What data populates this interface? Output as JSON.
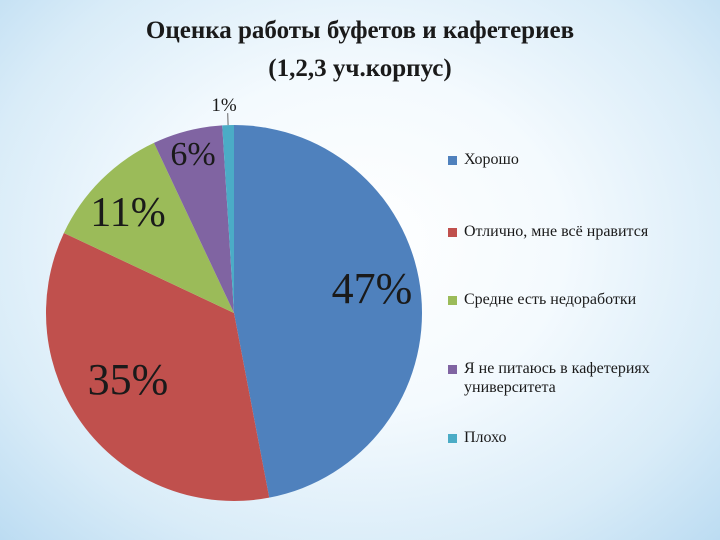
{
  "chart_data": {
    "type": "pie",
    "title": "Оценка работы буфетов и кафетериев",
    "subtitle": "(1,2,3 уч.корпус)",
    "categories": [
      "Хорошо",
      "Отлично, мне всё нравится",
      "Средне есть недоработки",
      "Я не питаюсь в кафетериях университета",
      "Плохо"
    ],
    "values": [
      47,
      35,
      11,
      6,
      1
    ],
    "data_labels": [
      "47%",
      "35%",
      "11%",
      "6%",
      "1%"
    ],
    "colors": [
      "#4f81bd",
      "#c0504d",
      "#9bbb59",
      "#8064a2",
      "#4bacc6"
    ],
    "legend_position": "right"
  }
}
